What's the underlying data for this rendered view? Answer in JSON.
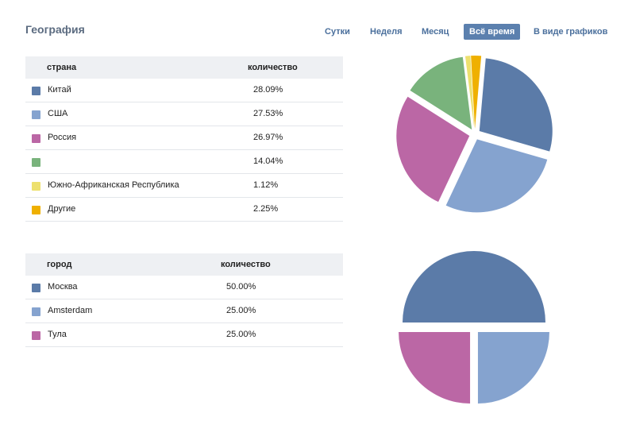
{
  "title": "География",
  "tabs": [
    {
      "label": "Сутки",
      "active": false
    },
    {
      "label": "Неделя",
      "active": false
    },
    {
      "label": "Месяц",
      "active": false
    },
    {
      "label": "Всё время",
      "active": true
    },
    {
      "label": "В виде графиков",
      "active": false
    }
  ],
  "countries": {
    "col_name": "страна",
    "col_value": "количество",
    "rows": [
      {
        "name": "Китай",
        "value": "28.09%",
        "color": "#5b7ba8"
      },
      {
        "name": "США",
        "value": "27.53%",
        "color": "#85a3cf"
      },
      {
        "name": "Россия",
        "value": "26.97%",
        "color": "#bb67a5"
      },
      {
        "name": "",
        "value": "14.04%",
        "color": "#79b37c"
      },
      {
        "name": "Южно-Африканская Республика",
        "value": "1.12%",
        "color": "#ede06e"
      },
      {
        "name": "Другие",
        "value": "2.25%",
        "color": "#efb000"
      }
    ]
  },
  "cities": {
    "col_name": "город",
    "col_value": "количество",
    "rows": [
      {
        "name": "Москва",
        "value": "50.00%",
        "color": "#5b7ba8"
      },
      {
        "name": "Amsterdam",
        "value": "25.00%",
        "color": "#85a3cf"
      },
      {
        "name": "Тула",
        "value": "25.00%",
        "color": "#bb67a5"
      }
    ]
  }
}
